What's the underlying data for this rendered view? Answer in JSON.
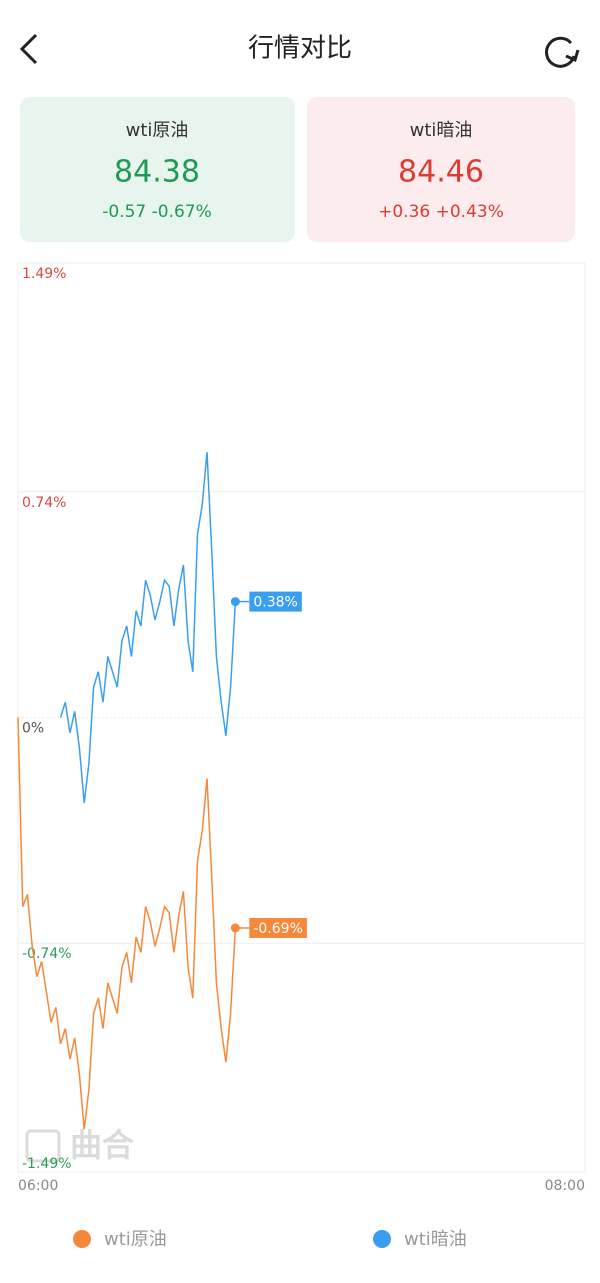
{
  "header": {
    "title": "行情对比"
  },
  "cards": [
    {
      "name": "wti原油",
      "price": "84.38",
      "change": "-0.57 -0.67%"
    },
    {
      "name": "wti暗油",
      "price": "84.46",
      "change": "+0.36 +0.43%"
    }
  ],
  "watermark": "曲合",
  "chart_data": {
    "type": "line",
    "x": [
      "06:00",
      "06:01",
      "06:02",
      "06:03",
      "06:04",
      "06:05",
      "06:06",
      "06:07",
      "06:08",
      "06:09",
      "06:10",
      "06:11",
      "06:12",
      "06:13",
      "06:14",
      "06:15",
      "06:16",
      "06:17",
      "06:18",
      "06:19",
      "06:20",
      "06:21",
      "06:22",
      "06:23",
      "06:24",
      "06:25",
      "06:26",
      "06:27",
      "06:28",
      "06:29",
      "06:30",
      "06:31",
      "06:32",
      "06:33",
      "06:34",
      "06:35",
      "06:36",
      "06:37",
      "06:38",
      "06:39",
      "06:40",
      "06:41",
      "06:42",
      "06:43",
      "06:44",
      "06:45",
      "06:46"
    ],
    "xlim": [
      "06:00",
      "08:00"
    ],
    "xticks": [
      "06:00",
      "08:00"
    ],
    "ylim": [
      -1.49,
      1.49
    ],
    "yticks": [
      {
        "value": 1.49,
        "label": "1.49%"
      },
      {
        "value": 0.74,
        "label": "0.74%"
      },
      {
        "value": 0,
        "label": "0%"
      },
      {
        "value": -0.74,
        "label": "-0.74%"
      },
      {
        "value": -1.49,
        "label": "-1.49%"
      }
    ],
    "grid": true,
    "series": [
      {
        "name": "wti原油",
        "color": "#f5883a",
        "values": [
          0,
          -0.62,
          -0.58,
          -0.75,
          -0.85,
          -0.8,
          -0.9,
          -1.0,
          -0.95,
          -1.07,
          -1.02,
          -1.12,
          -1.05,
          -1.17,
          -1.35,
          -1.22,
          -0.97,
          -0.92,
          -1.02,
          -0.87,
          -0.92,
          -0.97,
          -0.82,
          -0.77,
          -0.87,
          -0.72,
          -0.77,
          -0.62,
          -0.67,
          -0.75,
          -0.69,
          -0.62,
          -0.64,
          -0.77,
          -0.65,
          -0.57,
          -0.82,
          -0.92,
          -0.47,
          -0.37,
          -0.2,
          -0.52,
          -0.87,
          -1.02,
          -1.13,
          -0.97,
          -0.69
        ],
        "value_labels": [
          null,
          null,
          null,
          null,
          null,
          null,
          null,
          null,
          null,
          null,
          null,
          null,
          null,
          null,
          null,
          null,
          null,
          null,
          null,
          null,
          null,
          null,
          null,
          null,
          null,
          null,
          null,
          null,
          null,
          null,
          null,
          null,
          null,
          null,
          null,
          null,
          null,
          null,
          null,
          null,
          null,
          null,
          null,
          null,
          null,
          null,
          "-0.69%"
        ]
      },
      {
        "name": "wti暗油",
        "color": "#3a9ef0",
        "values": [
          null,
          null,
          null,
          null,
          null,
          null,
          null,
          null,
          null,
          0,
          0.05,
          -0.05,
          0.02,
          -0.1,
          -0.28,
          -0.15,
          0.1,
          0.15,
          0.05,
          0.2,
          0.15,
          0.1,
          0.25,
          0.3,
          0.2,
          0.35,
          0.3,
          0.45,
          0.4,
          0.32,
          0.38,
          0.45,
          0.43,
          0.3,
          0.42,
          0.5,
          0.25,
          0.15,
          0.6,
          0.7,
          0.87,
          0.55,
          0.2,
          0.05,
          -0.06,
          0.1,
          0.38
        ],
        "value_labels": [
          null,
          null,
          null,
          null,
          null,
          null,
          null,
          null,
          null,
          null,
          null,
          null,
          null,
          null,
          null,
          null,
          null,
          null,
          null,
          null,
          null,
          null,
          null,
          null,
          null,
          null,
          null,
          null,
          null,
          null,
          null,
          null,
          null,
          null,
          null,
          null,
          null,
          null,
          null,
          null,
          null,
          null,
          null,
          null,
          null,
          null,
          "0.38%"
        ]
      }
    ]
  }
}
